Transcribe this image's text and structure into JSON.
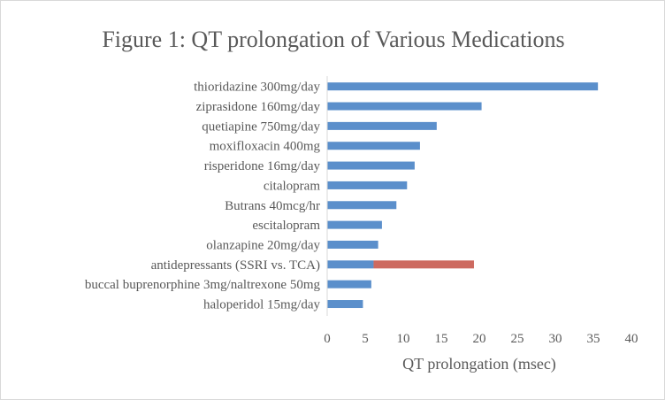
{
  "chart_data": {
    "type": "bar",
    "orientation": "horizontal",
    "title": "Figure 1: QT prolongation of Various Medications",
    "xlabel": "QT prolongation (msec)",
    "ylabel": "",
    "xlim": [
      0,
      40
    ],
    "x_ticks": [
      "0",
      "5",
      "10",
      "15",
      "20",
      "25",
      "30",
      "35",
      "40"
    ],
    "grid": false,
    "legend": "none",
    "categories": [
      "thioridazine 300mg/day",
      "ziprasidone 160mg/day",
      "quetiapine 750mg/day",
      "moxifloxacin 400mg",
      "risperidone 16mg/day",
      "citalopram",
      "Butrans 40mcg/hr",
      "escitalopram",
      "olanzapine 20mg/day",
      "antidepressants (SSRI vs. TCA)",
      "buccal buprenorphine 3mg/naltrexone 50mg",
      "haloperidol 15mg/day"
    ],
    "series": [
      {
        "color": "#5b8fcb",
        "values": [
          35.6,
          20.3,
          14.4,
          12.2,
          11.5,
          10.5,
          9.1,
          7.2,
          6.7,
          6.1,
          5.8,
          4.7
        ]
      },
      {
        "color": "#cd6a60",
        "values": [
          0,
          0,
          0,
          0,
          0,
          0,
          0,
          0,
          0,
          13.2,
          0,
          0
        ]
      }
    ],
    "stacked": true
  },
  "colors": {
    "text": "#595959",
    "axis": "#d9d9d9",
    "border": "#d9d9d9"
  }
}
